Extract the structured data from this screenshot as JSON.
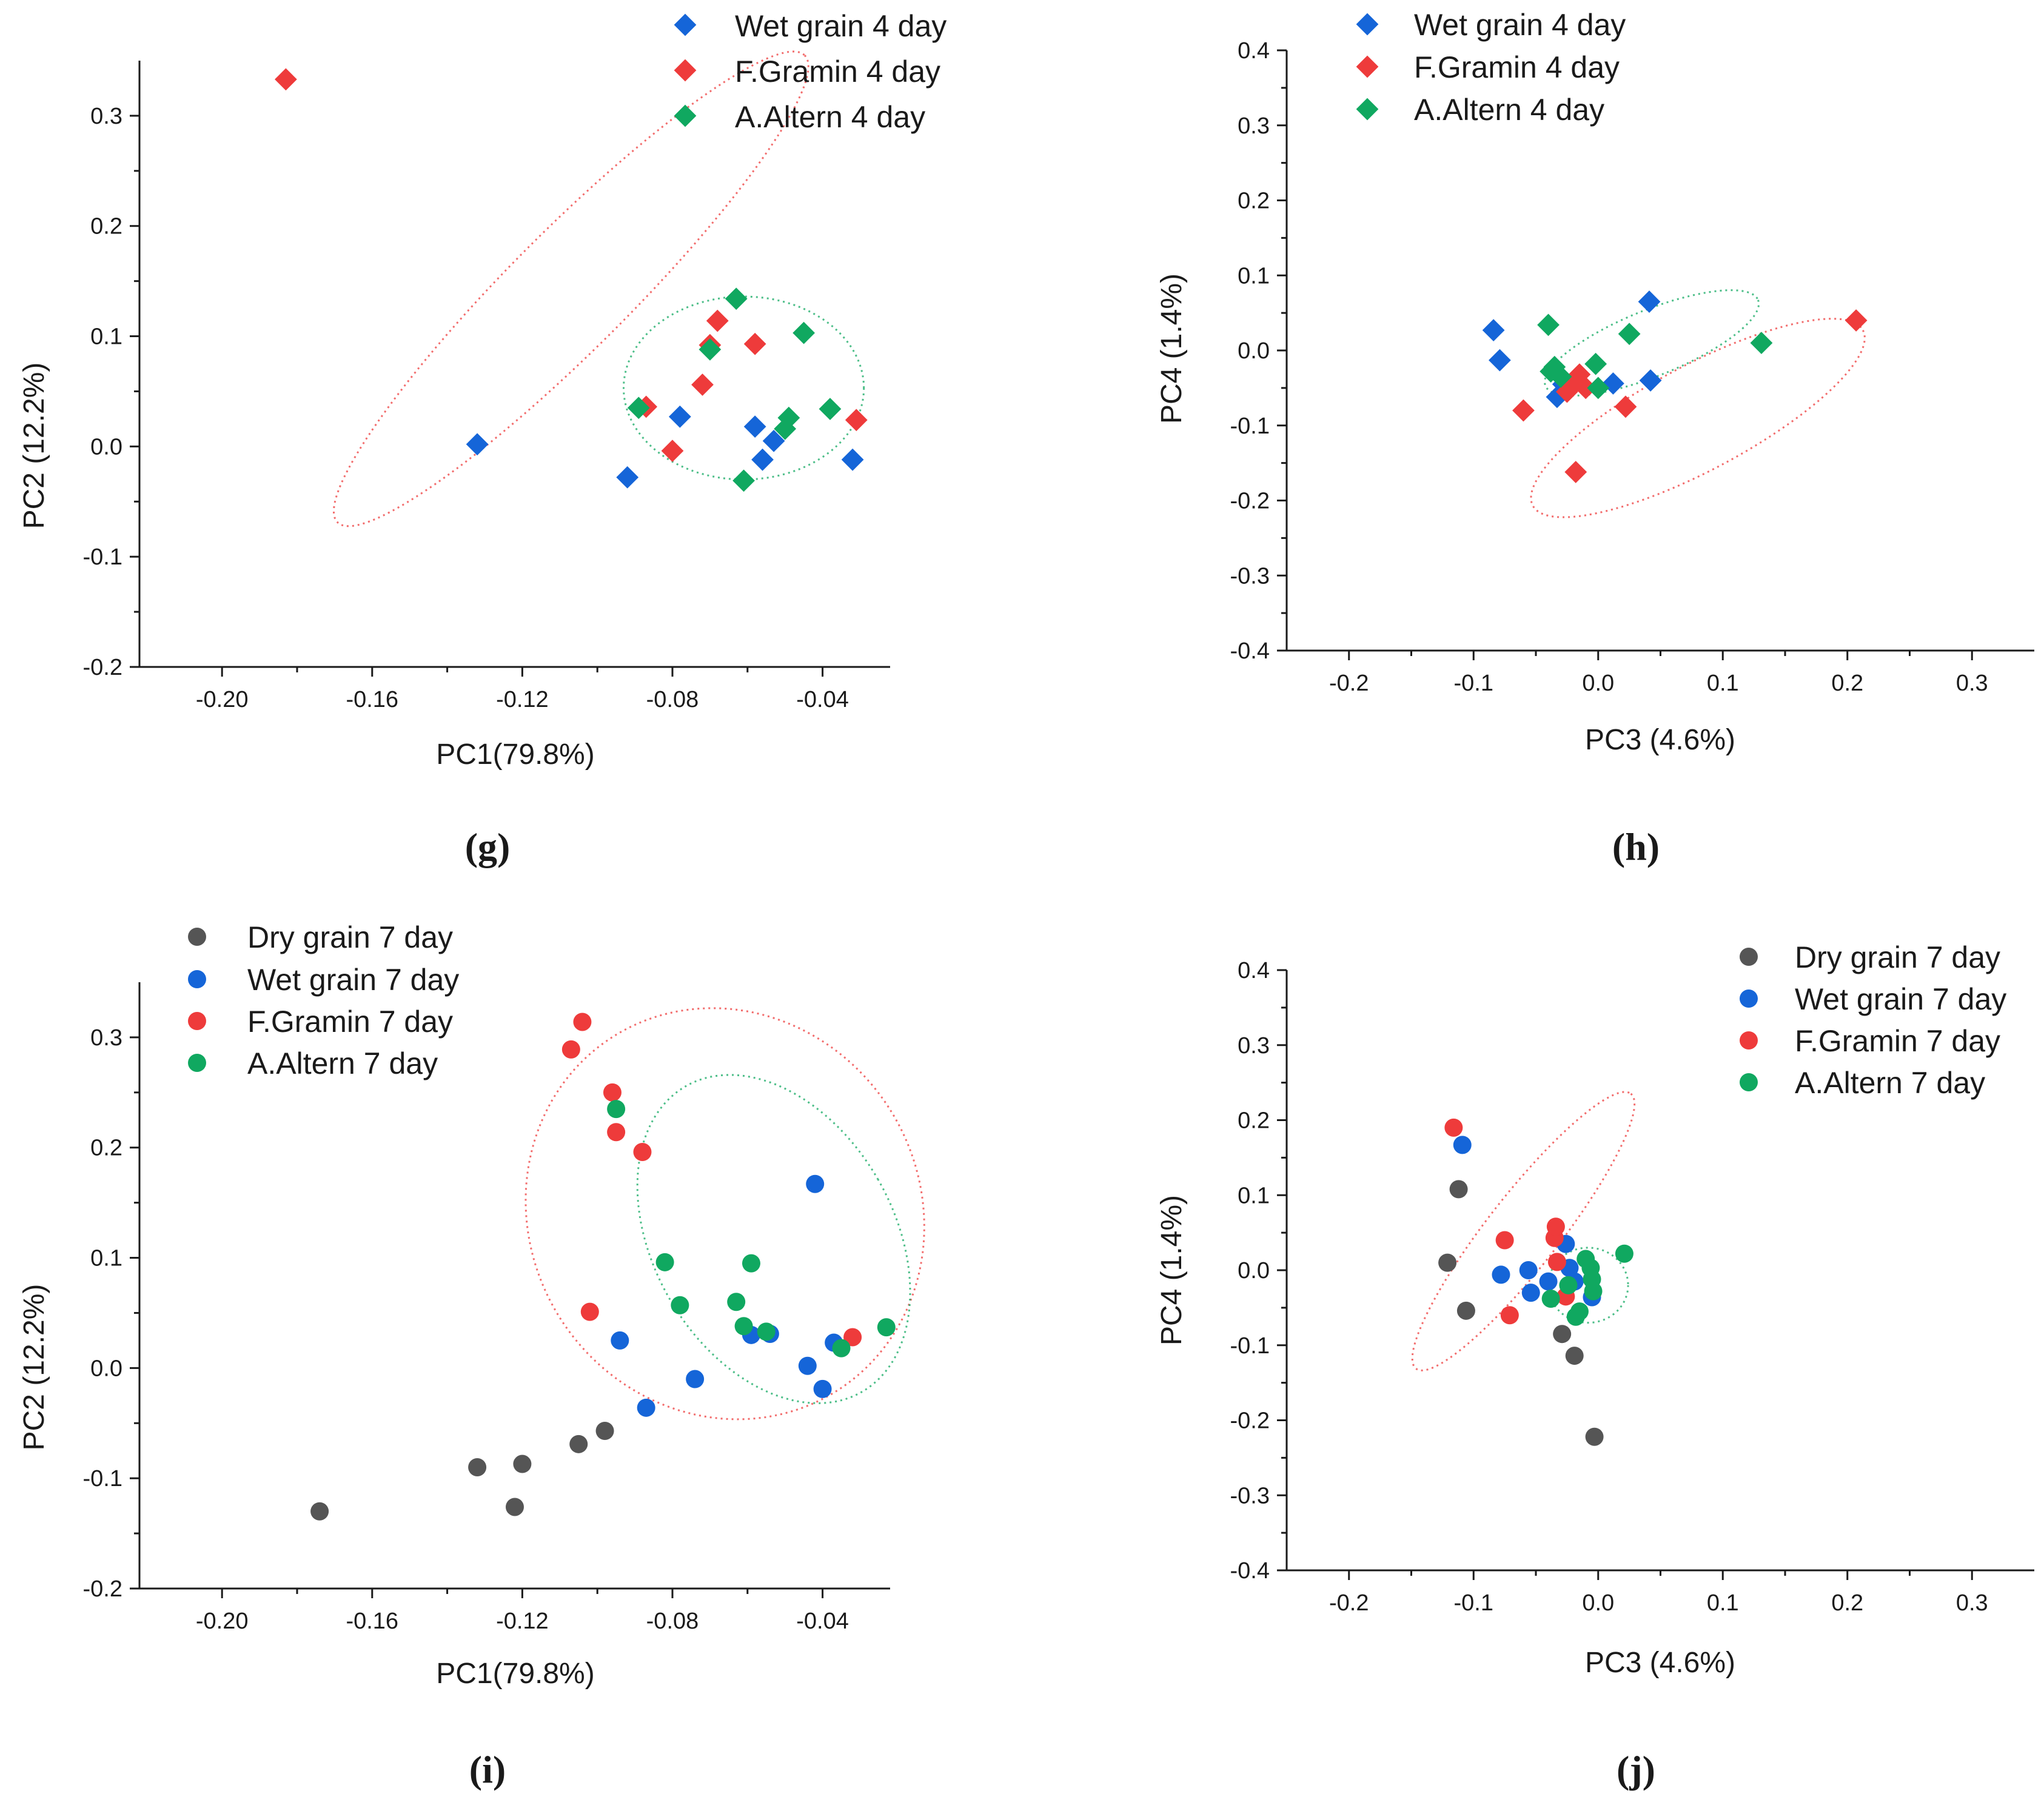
{
  "colors": {
    "Dry": "#555555",
    "Wet": "#1565d8",
    "FGram": "#ee3b3b",
    "AAlt": "#10a860"
  },
  "chart_data": [
    {
      "id": "g",
      "panel_label": "(g)",
      "type": "scatter",
      "marker": "diamond",
      "xlabel": "PC1(79.8%)",
      "ylabel": "PC2 (12.2%)",
      "xlim": [
        -0.222,
        -0.022
      ],
      "ylim": [
        -0.2,
        0.35
      ],
      "xticks": [
        -0.2,
        -0.16,
        -0.12,
        -0.08,
        -0.04
      ],
      "xtick_labels": [
        "-0.20",
        "-0.16",
        "-0.12",
        "-0.08",
        "-0.04"
      ],
      "yticks": [
        -0.2,
        -0.1,
        0.0,
        0.1,
        0.2,
        0.3
      ],
      "ytick_labels": [
        "-0.2",
        "-0.1",
        "0.0",
        "0.1",
        "0.2",
        "0.3"
      ],
      "legend_position": "top-right",
      "series": [
        {
          "name": "Wet grain 4 day",
          "key": "Wet",
          "points": [
            [
              -0.132,
              0.002
            ],
            [
              -0.092,
              -0.028
            ],
            [
              -0.078,
              0.027
            ],
            [
              -0.058,
              0.018
            ],
            [
              -0.056,
              -0.012
            ],
            [
              -0.053,
              0.005
            ],
            [
              -0.032,
              -0.012
            ]
          ]
        },
        {
          "name": "F.Gramin 4 day",
          "key": "FGram",
          "points": [
            [
              -0.183,
              0.333
            ],
            [
              -0.087,
              0.036
            ],
            [
              -0.08,
              -0.004
            ],
            [
              -0.072,
              0.056
            ],
            [
              -0.07,
              0.092
            ],
            [
              -0.068,
              0.114
            ],
            [
              -0.058,
              0.093
            ],
            [
              -0.031,
              0.024
            ]
          ]
        },
        {
          "name": "A.Altern 4 day",
          "key": "AAlt",
          "points": [
            [
              -0.089,
              0.035
            ],
            [
              -0.07,
              0.088
            ],
            [
              -0.063,
              0.134
            ],
            [
              -0.061,
              -0.031
            ],
            [
              -0.05,
              0.016
            ],
            [
              -0.049,
              0.026
            ],
            [
              -0.045,
              0.103
            ],
            [
              -0.038,
              0.034
            ]
          ]
        }
      ],
      "ellipses": [
        {
          "key": "FGram",
          "cx": -0.107,
          "cy": 0.143,
          "rx": 0.088,
          "ry": 0.054,
          "angle": -45
        },
        {
          "key": "AAlt",
          "cx": -0.061,
          "cy": 0.053,
          "rx": 0.032,
          "ry": 0.083,
          "angle": 0
        }
      ]
    },
    {
      "id": "h",
      "panel_label": "(h)",
      "type": "scatter",
      "marker": "diamond",
      "xlabel": "PC3 (4.6%)",
      "ylabel": "PC4 (1.4%)",
      "xlim": [
        -0.25,
        0.35
      ],
      "ylim": [
        -0.4,
        0.4
      ],
      "xticks": [
        -0.2,
        -0.1,
        0.0,
        0.1,
        0.2,
        0.3
      ],
      "xtick_labels": [
        "-0.2",
        "-0.1",
        "0.0",
        "0.1",
        "0.2",
        "0.3"
      ],
      "yticks": [
        -0.4,
        -0.3,
        -0.2,
        -0.1,
        0.0,
        0.1,
        0.2,
        0.3,
        0.4
      ],
      "ytick_labels": [
        "-0.4",
        "-0.3",
        "-0.2",
        "-0.1",
        "0.0",
        "0.1",
        "0.2",
        "0.3",
        "0.4"
      ],
      "legend_position": "top-center",
      "series": [
        {
          "name": "Wet grain 4 day",
          "key": "Wet",
          "points": [
            [
              -0.084,
              0.027
            ],
            [
              -0.079,
              -0.013
            ],
            [
              -0.033,
              -0.062
            ],
            [
              -0.028,
              -0.045
            ],
            [
              0.012,
              -0.044
            ],
            [
              0.042,
              -0.04
            ],
            [
              0.041,
              0.065
            ]
          ]
        },
        {
          "name": "F.Gramin 4 day",
          "key": "FGram",
          "points": [
            [
              -0.06,
              -0.08
            ],
            [
              -0.025,
              -0.055
            ],
            [
              -0.02,
              -0.045
            ],
            [
              -0.015,
              -0.032
            ],
            [
              -0.01,
              -0.05
            ],
            [
              -0.018,
              -0.162
            ],
            [
              0.022,
              -0.075
            ],
            [
              0.207,
              0.04
            ]
          ]
        },
        {
          "name": "A.Altern 4 day",
          "key": "AAlt",
          "points": [
            [
              -0.04,
              0.034
            ],
            [
              -0.038,
              -0.028
            ],
            [
              -0.035,
              -0.022
            ],
            [
              -0.03,
              -0.035
            ],
            [
              -0.002,
              -0.018
            ],
            [
              0.0,
              -0.05
            ],
            [
              0.025,
              0.022
            ],
            [
              0.131,
              0.01
            ]
          ]
        }
      ],
      "ellipses": [
        {
          "key": "FGram",
          "cx": 0.08,
          "cy": -0.09,
          "rx": 0.15,
          "ry": 0.07,
          "angle": -28
        },
        {
          "key": "AAlt",
          "cx": 0.043,
          "cy": 0.01,
          "rx": 0.092,
          "ry": 0.044,
          "angle": -22
        }
      ]
    },
    {
      "id": "i",
      "panel_label": "(i)",
      "type": "scatter",
      "marker": "circle",
      "xlabel": "PC1(79.8%)",
      "ylabel": "PC2 (12.2%)",
      "xlim": [
        -0.222,
        -0.022
      ],
      "ylim": [
        -0.2,
        0.35
      ],
      "xticks": [
        -0.2,
        -0.16,
        -0.12,
        -0.08,
        -0.04
      ],
      "xtick_labels": [
        "-0.20",
        "-0.16",
        "-0.12",
        "-0.08",
        "-0.04"
      ],
      "yticks": [
        -0.2,
        -0.1,
        0.0,
        0.1,
        0.2,
        0.3
      ],
      "ytick_labels": [
        "-0.2",
        "-0.1",
        "0.0",
        "0.1",
        "0.2",
        "0.3"
      ],
      "legend_position": "top-left",
      "series": [
        {
          "name": "Dry grain 7 day",
          "key": "Dry",
          "points": [
            [
              -0.174,
              -0.13
            ],
            [
              -0.132,
              -0.09
            ],
            [
              -0.122,
              -0.126
            ],
            [
              -0.12,
              -0.087
            ],
            [
              -0.105,
              -0.069
            ],
            [
              -0.098,
              -0.057
            ]
          ]
        },
        {
          "name": "Wet grain 7 day",
          "key": "Wet",
          "points": [
            [
              -0.094,
              0.025
            ],
            [
              -0.087,
              -0.036
            ],
            [
              -0.074,
              -0.01
            ],
            [
              -0.059,
              0.03
            ],
            [
              -0.054,
              0.031
            ],
            [
              -0.044,
              0.002
            ],
            [
              -0.042,
              0.167
            ],
            [
              -0.04,
              -0.019
            ],
            [
              -0.037,
              0.023
            ]
          ]
        },
        {
          "name": "F.Gramin 7 day",
          "key": "FGram",
          "points": [
            [
              -0.107,
              0.289
            ],
            [
              -0.104,
              0.314
            ],
            [
              -0.096,
              0.25
            ],
            [
              -0.095,
              0.214
            ],
            [
              -0.088,
              0.196
            ],
            [
              -0.102,
              0.051
            ],
            [
              -0.032,
              0.028
            ]
          ]
        },
        {
          "name": "A.Altern 7 day",
          "key": "AAlt",
          "points": [
            [
              -0.095,
              0.235
            ],
            [
              -0.082,
              0.096
            ],
            [
              -0.078,
              0.057
            ],
            [
              -0.063,
              0.06
            ],
            [
              -0.061,
              0.038
            ],
            [
              -0.059,
              0.095
            ],
            [
              -0.055,
              0.033
            ],
            [
              -0.035,
              0.018
            ],
            [
              -0.023,
              0.037
            ]
          ]
        }
      ],
      "ellipses": [
        {
          "key": "FGram",
          "cx": -0.066,
          "cy": 0.14,
          "rx": 0.052,
          "ry": 0.19,
          "angle": -32
        },
        {
          "key": "AAlt",
          "cx": -0.053,
          "cy": 0.117,
          "rx": 0.032,
          "ry": 0.16,
          "angle": -30
        }
      ]
    },
    {
      "id": "j",
      "panel_label": "(j)",
      "type": "scatter",
      "marker": "circle",
      "xlabel": "PC3 (4.6%)",
      "ylabel": "PC4 (1.4%)",
      "xlim": [
        -0.25,
        0.35
      ],
      "ylim": [
        -0.4,
        0.4
      ],
      "xticks": [
        -0.2,
        -0.1,
        0.0,
        0.1,
        0.2,
        0.3
      ],
      "xtick_labels": [
        "-0.2",
        "-0.1",
        "0.0",
        "0.1",
        "0.2",
        "0.3"
      ],
      "yticks": [
        -0.4,
        -0.3,
        -0.2,
        -0.1,
        0.0,
        0.1,
        0.2,
        0.3,
        0.4
      ],
      "ytick_labels": [
        "-0.4",
        "-0.3",
        "-0.2",
        "-0.1",
        "0.0",
        "0.1",
        "0.2",
        "0.3",
        "0.4"
      ],
      "legend_position": "top-right",
      "series": [
        {
          "name": "Dry grain 7 day",
          "key": "Dry",
          "points": [
            [
              -0.121,
              0.01
            ],
            [
              -0.112,
              0.108
            ],
            [
              -0.106,
              -0.054
            ],
            [
              -0.029,
              -0.085
            ],
            [
              -0.019,
              -0.114
            ],
            [
              -0.003,
              -0.222
            ]
          ]
        },
        {
          "name": "Wet grain 7 day",
          "key": "Wet",
          "points": [
            [
              -0.109,
              0.167
            ],
            [
              -0.078,
              -0.006
            ],
            [
              -0.056,
              0.0
            ],
            [
              -0.054,
              -0.03
            ],
            [
              -0.04,
              -0.015
            ],
            [
              -0.026,
              0.035
            ],
            [
              -0.023,
              0.003
            ],
            [
              -0.019,
              -0.015
            ],
            [
              -0.005,
              -0.036
            ]
          ]
        },
        {
          "name": "F.Gramin 7 day",
          "key": "FGram",
          "points": [
            [
              -0.116,
              0.19
            ],
            [
              -0.075,
              0.04
            ],
            [
              -0.071,
              -0.06
            ],
            [
              -0.035,
              0.043
            ],
            [
              -0.034,
              0.058
            ],
            [
              -0.033,
              0.011
            ],
            [
              -0.026,
              -0.035
            ]
          ]
        },
        {
          "name": "A.Altern 7 day",
          "key": "AAlt",
          "points": [
            [
              -0.038,
              -0.038
            ],
            [
              -0.024,
              -0.02
            ],
            [
              -0.018,
              -0.062
            ],
            [
              -0.015,
              -0.055
            ],
            [
              -0.01,
              0.015
            ],
            [
              -0.006,
              0.003
            ],
            [
              -0.005,
              -0.012
            ],
            [
              -0.004,
              -0.028
            ],
            [
              0.021,
              0.022
            ]
          ]
        }
      ],
      "ellipses": [
        {
          "key": "FGram",
          "cx": -0.06,
          "cy": 0.052,
          "rx": 0.14,
          "ry": 0.048,
          "angle": -52
        },
        {
          "key": "AAlt",
          "cx": -0.008,
          "cy": -0.02,
          "rx": 0.032,
          "ry": 0.05,
          "angle": 0
        }
      ]
    }
  ]
}
